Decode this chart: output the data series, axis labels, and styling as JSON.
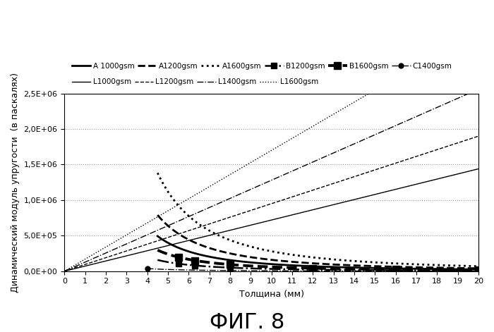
{
  "title": "ФИГ. 8",
  "xlabel": "Толщина (мм)",
  "ylabel": "Динамический модуль упругости  (в паскалях)",
  "xlim": [
    0,
    20
  ],
  "ylim": [
    0,
    2500000
  ],
  "yticks": [
    0,
    500000,
    1000000,
    1500000,
    2000000,
    2500000
  ],
  "ytick_labels": [
    "0,0E+00",
    "5,0E+05",
    "1,0E+06",
    "1,5E+06",
    "2,0E+06",
    "2,5E+06"
  ],
  "xticks": [
    0,
    1,
    2,
    3,
    4,
    5,
    6,
    7,
    8,
    9,
    10,
    11,
    12,
    13,
    14,
    15,
    16,
    17,
    18,
    19,
    20
  ],
  "series": [
    {
      "label": "A 1000gsm",
      "type": "hyperbolic",
      "k": 10000000,
      "x_start": 4.5,
      "color": "black",
      "linestyle": "-",
      "linewidth": 2.0,
      "marker": null,
      "markersize": 0,
      "marker_xs": []
    },
    {
      "label": "A1200gsm",
      "type": "hyperbolic",
      "k": 16000000,
      "x_start": 4.5,
      "color": "black",
      "linestyle": "--",
      "linewidth": 2.0,
      "marker": null,
      "markersize": 0,
      "marker_xs": []
    },
    {
      "label": "A1600gsm",
      "type": "hyperbolic",
      "k": 28000000,
      "x_start": 4.5,
      "color": "black",
      "linestyle": ":",
      "linewidth": 2.0,
      "marker": null,
      "markersize": 0,
      "marker_xs": []
    },
    {
      "label": "B1200gsm",
      "type": "hyperbolic",
      "k": 3200000,
      "x_start": 4.5,
      "color": "black",
      "linestyle": "-.",
      "linewidth": 1.8,
      "marker": "s",
      "markersize": 6,
      "marker_xs": [
        5.5,
        6.3,
        8.0,
        12.0,
        16.0,
        20.0
      ]
    },
    {
      "label": "B1600gsm",
      "type": "hyperbolic",
      "k": 6000000,
      "x_start": 4.5,
      "color": "black",
      "linestyle": "--",
      "linewidth": 2.8,
      "marker": "s",
      "markersize": 7,
      "marker_xs": [
        5.5,
        6.3,
        8.0,
        12.0,
        16.0,
        20.0
      ]
    },
    {
      "label": "C1400gsm",
      "type": "hyperbolic",
      "k": 600000,
      "x_start": 4.0,
      "color": "black",
      "linestyle": "-.",
      "linewidth": 1.0,
      "marker": "o",
      "markersize": 5,
      "marker_xs": [
        4.0,
        8.0,
        12.0,
        16.0,
        20.0
      ]
    },
    {
      "label": "L1000gsm",
      "type": "linear",
      "slope": 72000,
      "color": "black",
      "linestyle": "-",
      "linewidth": 1.0,
      "marker": null,
      "markersize": 0,
      "marker_xs": []
    },
    {
      "label": "L1200gsm",
      "type": "linear",
      "slope": 95000,
      "color": "black",
      "linestyle": "--",
      "linewidth": 1.0,
      "marker": null,
      "markersize": 0,
      "marker_xs": []
    },
    {
      "label": "L1400gsm",
      "type": "linear",
      "slope": 128000,
      "color": "black",
      "linestyle": "-.",
      "linewidth": 1.0,
      "marker": null,
      "markersize": 0,
      "marker_xs": []
    },
    {
      "label": "L1600gsm",
      "type": "linear",
      "slope": 170000,
      "color": "black",
      "linestyle": ":",
      "linewidth": 1.0,
      "marker": null,
      "markersize": 0,
      "marker_xs": []
    }
  ],
  "legend_row1": [
    "A 1000gsm",
    "A1200gsm",
    "A1600gsm",
    "B1200gsm",
    "B1600gsm",
    "C1400gsm"
  ],
  "legend_row2": [
    "L1000gsm",
    "L1200gsm",
    "L1400gsm",
    "L1600gsm"
  ],
  "background_color": "#ffffff",
  "grid_color": "#999999",
  "title_fontsize": 22,
  "axis_label_fontsize": 9,
  "tick_fontsize": 8,
  "legend_fontsize": 7.5
}
